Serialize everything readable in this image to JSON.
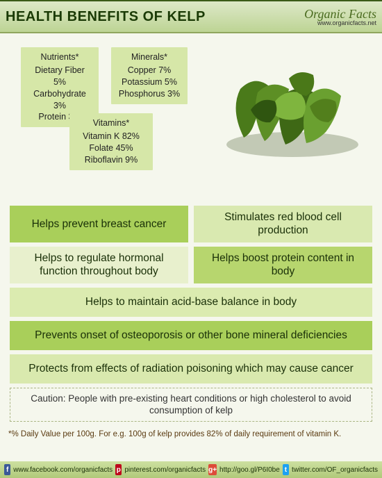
{
  "header": {
    "title": "HEALTH BENEFITS OF KELP",
    "logo_main": "Organic Facts",
    "logo_url": "www.organicfacts.net"
  },
  "nutrient_boxes": {
    "nutrients": {
      "title": "Nutrients*",
      "lines": [
        "Dietary Fiber 5%",
        "Carbohydrate 3%",
        "Protein 3%"
      ],
      "bg": "#d6e7a8"
    },
    "minerals": {
      "title": "Minerals*",
      "lines": [
        "Copper 7%",
        "Potassium 5%",
        "Phosphorus 3%"
      ],
      "bg": "#d6e7a8"
    },
    "vitamins": {
      "title": "Vitamins*",
      "lines": [
        "Vitamin K 82%",
        "Folate 45%",
        "Riboflavin 9%"
      ],
      "bg": "#d6e7a8"
    }
  },
  "benefits": [
    {
      "cells": [
        {
          "text": "Helps prevent breast cancer",
          "bg": "#a9cf5a"
        },
        {
          "text": "Stimulates red blood cell production",
          "bg": "#d9e9b0"
        }
      ]
    },
    {
      "cells": [
        {
          "text": "Helps to regulate hormonal function throughout body",
          "bg": "#e8f0cd"
        },
        {
          "text": "Helps boost protein content in body",
          "bg": "#b7d66e"
        }
      ]
    },
    {
      "cells": [
        {
          "text": "Helps to maintain acid-base balance in body",
          "bg": "#dbebb0"
        }
      ]
    },
    {
      "cells": [
        {
          "text": "Prevents onset of osteoporosis or other bone mineral deficiencies",
          "bg": "#a9cf5a"
        }
      ]
    },
    {
      "cells": [
        {
          "text": "Protects from effects of radiation poisoning which may cause cancer",
          "bg": "#d9e9ae"
        }
      ]
    }
  ],
  "caution": "Caution: People with pre-existing heart conditions or high cholesterol to avoid consumption of kelp",
  "footnote": "*% Daily Value per 100g. For e.g. 100g of kelp provides 82% of daily requirement of vitamin K.",
  "footer": {
    "fb": "www.facebook.com/organicfacts",
    "pin": "pinterest.com/organicfacts",
    "gp": "http://goo.gl/P6I0be",
    "tw": "twitter.com/OF_organicfacts"
  },
  "colors": {
    "page_bg": "#f5f7ed",
    "header_text": "#1a3a05",
    "benefit_text": "#1a3008"
  }
}
